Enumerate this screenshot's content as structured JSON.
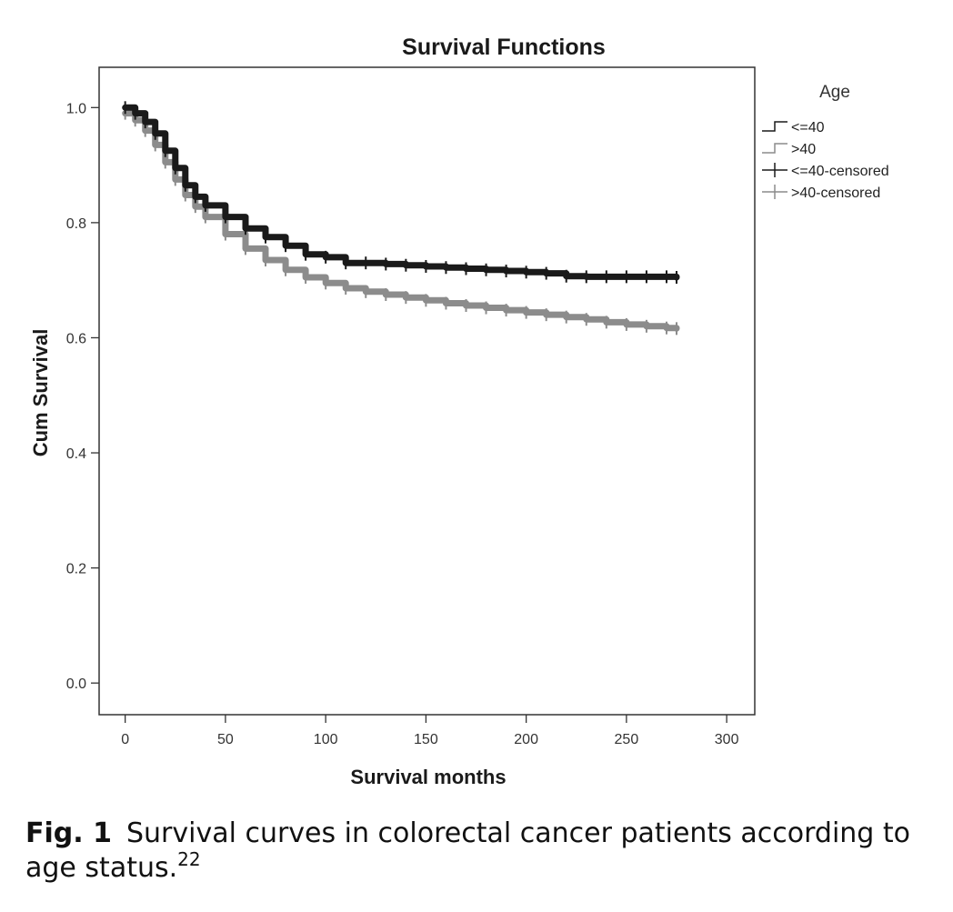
{
  "chart_data": {
    "type": "line",
    "title": "Survival Functions",
    "xlabel": "Survival months",
    "ylabel": "Cum Survival",
    "xlim": [
      -13,
      314
    ],
    "ylim": [
      -0.055,
      1.07
    ],
    "xticks": [
      "0",
      "50",
      "100",
      "150",
      "200",
      "250",
      "300"
    ],
    "xtick_values": [
      0,
      50,
      100,
      150,
      200,
      250,
      300
    ],
    "yticks": [
      "0.0",
      "0.2",
      "0.4",
      "0.6",
      "0.8",
      "1.0"
    ],
    "ytick_values": [
      0.0,
      0.2,
      0.4,
      0.6,
      0.8,
      1.0
    ],
    "grid": false,
    "legend": {
      "title": "Age",
      "position": "right",
      "entries": [
        "<=40",
        ">40",
        "<=40-censored",
        ">40-censored"
      ]
    },
    "series": [
      {
        "name": "<=40",
        "color": "#1a1a1a",
        "x": [
          0,
          5,
          10,
          15,
          20,
          25,
          30,
          35,
          40,
          50,
          60,
          70,
          80,
          90,
          100,
          110,
          120,
          130,
          140,
          150,
          160,
          170,
          180,
          190,
          200,
          210,
          220,
          230,
          240,
          250,
          260,
          270,
          275
        ],
        "y": [
          1.0,
          0.99,
          0.975,
          0.955,
          0.925,
          0.895,
          0.865,
          0.845,
          0.83,
          0.81,
          0.79,
          0.775,
          0.76,
          0.745,
          0.74,
          0.73,
          0.73,
          0.728,
          0.726,
          0.724,
          0.722,
          0.72,
          0.718,
          0.716,
          0.714,
          0.712,
          0.707,
          0.706,
          0.706,
          0.706,
          0.706,
          0.706,
          0.705
        ]
      },
      {
        "name": ">40",
        "color": "#8c8c8c",
        "x": [
          0,
          5,
          10,
          15,
          20,
          25,
          30,
          35,
          40,
          50,
          60,
          70,
          80,
          90,
          100,
          110,
          120,
          130,
          140,
          150,
          160,
          170,
          180,
          190,
          200,
          210,
          220,
          230,
          240,
          250,
          260,
          270,
          275
        ],
        "y": [
          0.99,
          0.978,
          0.96,
          0.935,
          0.905,
          0.875,
          0.848,
          0.828,
          0.81,
          0.78,
          0.755,
          0.735,
          0.718,
          0.705,
          0.695,
          0.686,
          0.68,
          0.675,
          0.67,
          0.665,
          0.66,
          0.656,
          0.652,
          0.648,
          0.644,
          0.64,
          0.636,
          0.632,
          0.627,
          0.623,
          0.62,
          0.617,
          0.616
        ]
      }
    ]
  },
  "caption": {
    "label": "Fig. 1",
    "text": "Survival curves in colorectal cancer patients according to age status.",
    "ref": "22"
  }
}
